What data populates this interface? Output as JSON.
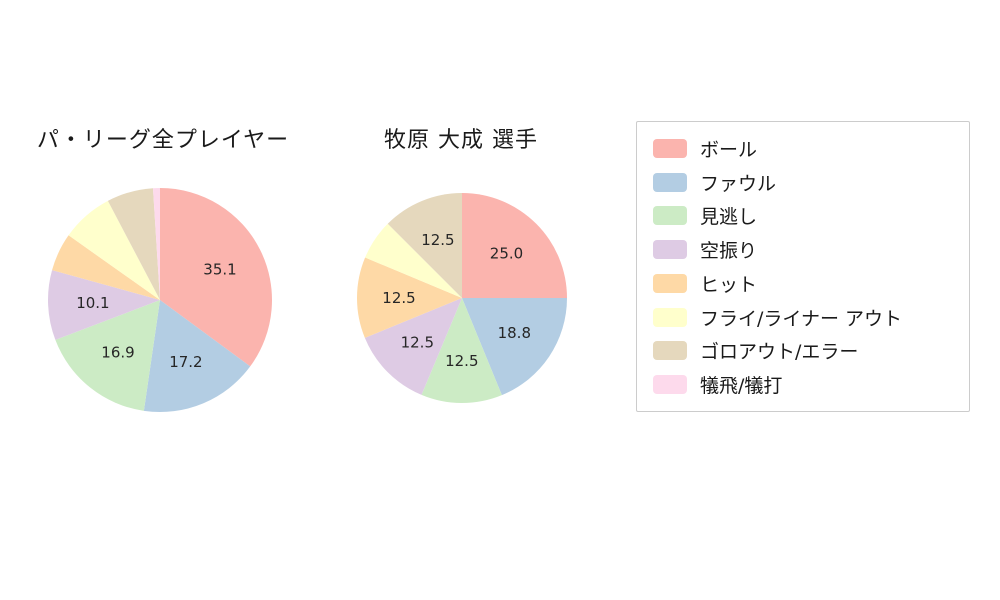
{
  "figure": {
    "background": "#ffffff"
  },
  "legend": {
    "items": [
      {
        "label": "ボール",
        "color": "#fbb4ae"
      },
      {
        "label": "ファウル",
        "color": "#b3cde3"
      },
      {
        "label": "見逃し",
        "color": "#ccebc5"
      },
      {
        "label": "空振り",
        "color": "#decbe4"
      },
      {
        "label": "ヒット",
        "color": "#fed9a6"
      },
      {
        "label": "フライ/ライナー アウト",
        "color": "#ffffcc"
      },
      {
        "label": "ゴロアウト/エラー",
        "color": "#e5d8bd"
      },
      {
        "label": "犠飛/犠打",
        "color": "#fddaec"
      }
    ]
  },
  "chart_data": [
    {
      "type": "pie",
      "title": "パ・リーグ全プレイヤー",
      "categories": [
        "ボール",
        "ファウル",
        "見逃し",
        "空振り",
        "ヒット",
        "フライ/ライナー アウト",
        "ゴロアウト/エラー",
        "犠飛/犠打"
      ],
      "values": [
        35.1,
        17.2,
        16.9,
        10.1,
        5.5,
        7.5,
        6.7,
        1.0
      ],
      "displayed_value_labels": [
        "35.1",
        "17.2",
        "16.9",
        "10.1"
      ],
      "label_threshold": 10,
      "start_angle_deg": 90,
      "direction": "clockwise",
      "colors": [
        "#fbb4ae",
        "#b3cde3",
        "#ccebc5",
        "#decbe4",
        "#fed9a6",
        "#ffffcc",
        "#e5d8bd",
        "#fddaec"
      ],
      "legend_position": "right",
      "grid": false
    },
    {
      "type": "pie",
      "title": "牧原 大成  選手",
      "categories": [
        "ボール",
        "ファウル",
        "見逃し",
        "空振り",
        "ヒット",
        "フライ/ライナー アウト",
        "ゴロアウト/エラー",
        "犠飛/犠打"
      ],
      "values": [
        25.0,
        18.8,
        12.5,
        12.5,
        12.5,
        6.2,
        12.5,
        0
      ],
      "displayed_value_labels": [
        "25.0",
        "18.8",
        "12.5",
        "12.5",
        "12.5",
        "12.5"
      ],
      "label_threshold": 10,
      "start_angle_deg": 90,
      "direction": "clockwise",
      "colors": [
        "#fbb4ae",
        "#b3cde3",
        "#ccebc5",
        "#decbe4",
        "#fed9a6",
        "#ffffcc",
        "#e5d8bd",
        "#fddaec"
      ],
      "legend_position": "right",
      "grid": false
    }
  ]
}
